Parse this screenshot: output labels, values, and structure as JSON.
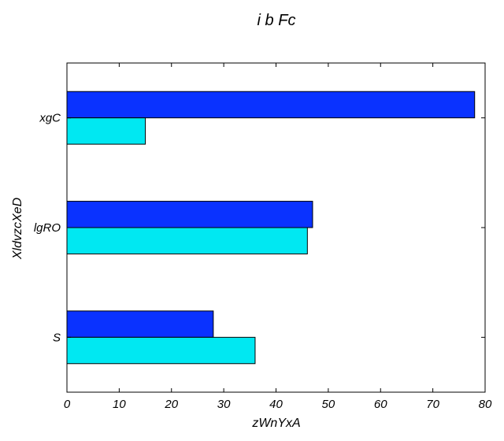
{
  "chart_data": {
    "type": "bar",
    "orientation": "horizontal",
    "title": "i b Fc",
    "xlabel": "zWnYxA",
    "ylabel": "XldvzcXeD",
    "categories": [
      "S",
      "lgRO",
      "xgC"
    ],
    "series": [
      {
        "values": [
          28,
          47,
          78
        ],
        "color": "#0a32ff"
      },
      {
        "values": [
          36,
          46,
          15
        ],
        "color": "#00e8f2"
      }
    ],
    "xlim": [
      0,
      80
    ],
    "xticks": [
      0,
      10,
      20,
      30,
      40,
      50,
      60,
      70,
      80
    ],
    "grid": false,
    "legend": "none"
  }
}
